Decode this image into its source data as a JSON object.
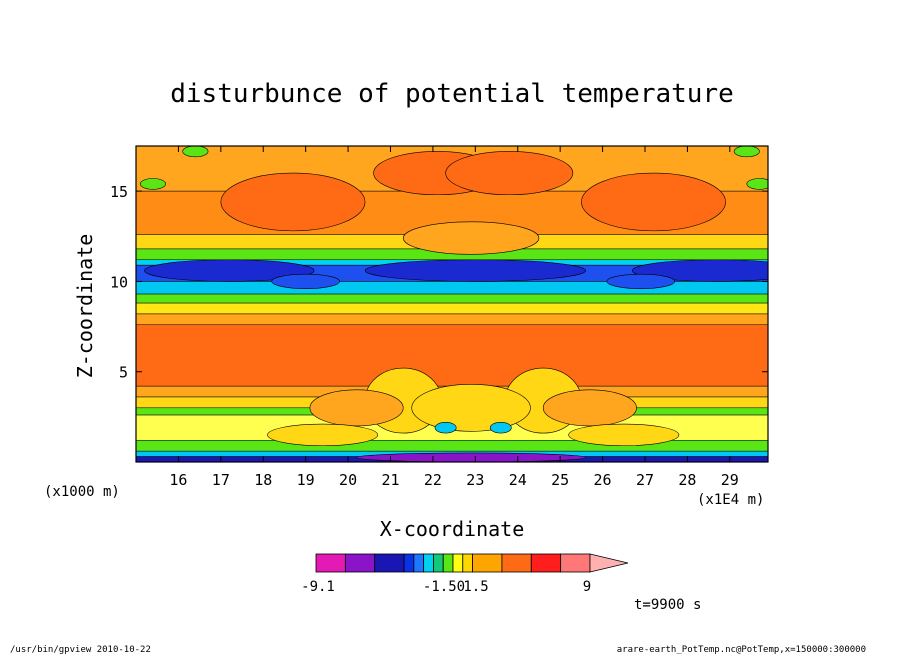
{
  "chart_data": {
    "type": "heatmap",
    "title": "disturbunce of potential temperature",
    "xlabel": "X-coordinate",
    "ylabel": "Z-coordinate",
    "x_unit_left": "(x1000 m)",
    "x_unit_right": "(x1E4 m)",
    "x_ticks": [
      16,
      17,
      18,
      19,
      20,
      21,
      22,
      23,
      24,
      25,
      26,
      27,
      28,
      29
    ],
    "y_ticks": [
      5,
      10,
      15
    ],
    "xlim": [
      15,
      29.9
    ],
    "ylim": [
      0,
      17.5
    ],
    "time_label": "t=9900 s",
    "colorbar": {
      "labels": [
        "-9.1",
        "-1.50",
        "1.5",
        "9"
      ],
      "colors": [
        "#e31bb4",
        "#8a14c8",
        "#1a16b4",
        "#0a32e6",
        "#1e78ff",
        "#00d2f0",
        "#14c878",
        "#5ae614",
        "#ffff14",
        "#ffd700",
        "#ffa500",
        "#ff6a14",
        "#ff1e1e",
        "#ff7878",
        "#ffb0b0"
      ]
    },
    "bands": [
      {
        "z": [
          15.0,
          17.5
        ],
        "color": "#ffa51e"
      },
      {
        "z": [
          12.6,
          15.0
        ],
        "color": "#ff8c14"
      },
      {
        "z": [
          11.8,
          12.6
        ],
        "color": "#ffd714"
      },
      {
        "z": [
          11.2,
          11.8
        ],
        "color": "#5ae614"
      },
      {
        "z": [
          10.9,
          11.2
        ],
        "color": "#00d2f0"
      },
      {
        "z": [
          10.0,
          10.9
        ],
        "color": "#1e50f0"
      },
      {
        "z": [
          9.3,
          10.0
        ],
        "color": "#00c8f0"
      },
      {
        "z": [
          8.8,
          9.3
        ],
        "color": "#5ae614"
      },
      {
        "z": [
          8.2,
          8.8
        ],
        "color": "#ffe614"
      },
      {
        "z": [
          7.6,
          8.2
        ],
        "color": "#ffa51e"
      },
      {
        "z": [
          4.2,
          7.6
        ],
        "color": "#ff6a14"
      },
      {
        "z": [
          3.6,
          4.2
        ],
        "color": "#ffa51e"
      },
      {
        "z": [
          3.0,
          3.6
        ],
        "color": "#ffd714"
      },
      {
        "z": [
          2.6,
          3.0
        ],
        "color": "#5ae614"
      },
      {
        "z": [
          1.2,
          2.6
        ],
        "color": "#ffff50"
      },
      {
        "z": [
          0.6,
          1.2
        ],
        "color": "#5ae614"
      },
      {
        "z": [
          0.3,
          0.6
        ],
        "color": "#00c8f0"
      },
      {
        "z": [
          0.0,
          0.3
        ],
        "color": "#1a16b4"
      }
    ],
    "blobs": [
      {
        "x": 18.7,
        "z": 14.4,
        "rx": 1.7,
        "rz": 1.6,
        "color": "#ff6a14"
      },
      {
        "x": 27.2,
        "z": 14.4,
        "rx": 1.7,
        "rz": 1.6,
        "color": "#ff6a14"
      },
      {
        "x": 22.1,
        "z": 16.0,
        "rx": 1.5,
        "rz": 1.2,
        "color": "#ff6a14"
      },
      {
        "x": 23.8,
        "z": 16.0,
        "rx": 1.5,
        "rz": 1.2,
        "color": "#ff6a14"
      },
      {
        "x": 22.9,
        "z": 12.4,
        "rx": 1.6,
        "rz": 0.9,
        "color": "#ffa51e"
      },
      {
        "x": 17.2,
        "z": 10.6,
        "rx": 2.0,
        "rz": 0.6,
        "color": "#1a2ad0"
      },
      {
        "x": 28.7,
        "z": 10.6,
        "rx": 2.0,
        "rz": 0.6,
        "color": "#1a2ad0"
      },
      {
        "x": 23.0,
        "z": 10.6,
        "rx": 2.6,
        "rz": 0.6,
        "color": "#1a2ad0"
      },
      {
        "x": 19.0,
        "z": 10.0,
        "rx": 0.8,
        "rz": 0.4,
        "color": "#1e50f0"
      },
      {
        "x": 26.9,
        "z": 10.0,
        "rx": 0.8,
        "rz": 0.4,
        "color": "#1e50f0"
      },
      {
        "x": 16.4,
        "z": 17.2,
        "rx": 0.3,
        "rz": 0.3,
        "color": "#5ae614"
      },
      {
        "x": 29.4,
        "z": 17.2,
        "rx": 0.3,
        "rz": 0.3,
        "color": "#5ae614"
      },
      {
        "x": 15.4,
        "z": 15.4,
        "rx": 0.3,
        "rz": 0.3,
        "color": "#5ae614"
      },
      {
        "x": 29.7,
        "z": 15.4,
        "rx": 0.3,
        "rz": 0.3,
        "color": "#5ae614"
      },
      {
        "x": 21.3,
        "z": 3.4,
        "rx": 0.9,
        "rz": 1.8,
        "color": "#ffd714"
      },
      {
        "x": 24.6,
        "z": 3.4,
        "rx": 0.9,
        "rz": 1.8,
        "color": "#ffd714"
      },
      {
        "x": 22.9,
        "z": 3.0,
        "rx": 1.4,
        "rz": 1.3,
        "color": "#ffd714"
      },
      {
        "x": 20.2,
        "z": 3.0,
        "rx": 1.1,
        "rz": 1.0,
        "color": "#ffa51e"
      },
      {
        "x": 25.7,
        "z": 3.0,
        "rx": 1.1,
        "rz": 1.0,
        "color": "#ffa51e"
      },
      {
        "x": 22.3,
        "z": 1.9,
        "rx": 0.25,
        "rz": 0.3,
        "color": "#00c8f0"
      },
      {
        "x": 23.6,
        "z": 1.9,
        "rx": 0.25,
        "rz": 0.3,
        "color": "#00c8f0"
      },
      {
        "x": 19.4,
        "z": 1.5,
        "rx": 1.3,
        "rz": 0.6,
        "color": "#ffd714"
      },
      {
        "x": 26.5,
        "z": 1.5,
        "rx": 1.3,
        "rz": 0.6,
        "color": "#ffd714"
      },
      {
        "x": 22.9,
        "z": 0.25,
        "rx": 2.7,
        "rz": 0.25,
        "color": "#8a14c8"
      }
    ]
  },
  "footer": {
    "left": "/usr/bin/gpview   2010-10-22",
    "right": "arare-earth_PotTemp.nc@PotTemp,x=150000:300000"
  }
}
